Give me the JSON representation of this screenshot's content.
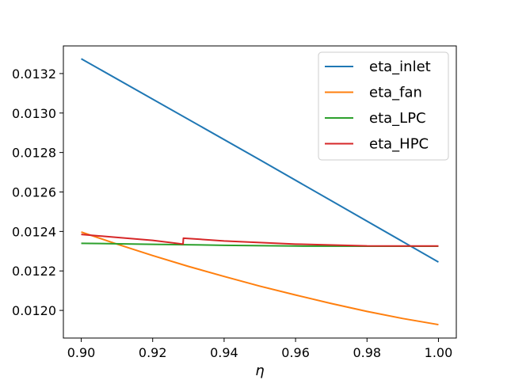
{
  "chart_data": {
    "type": "line",
    "title": "",
    "xlabel": "η",
    "ylabel": "",
    "xlim": [
      0.895,
      1.005
    ],
    "ylim": [
      0.01186,
      0.01334
    ],
    "xticks": [
      0.9,
      0.92,
      0.94,
      0.96,
      0.98,
      1.0
    ],
    "xtick_labels": [
      "0.90",
      "0.92",
      "0.94",
      "0.96",
      "0.98",
      "1.00"
    ],
    "yticks": [
      0.012,
      0.0122,
      0.0124,
      0.0126,
      0.0128,
      0.013,
      0.0132
    ],
    "ytick_labels": [
      "0.0120",
      "0.0122",
      "0.0124",
      "0.0126",
      "0.0128",
      "0.0130",
      "0.0132"
    ],
    "grid": false,
    "legend_position": "top-right",
    "series": [
      {
        "name": "eta_inlet",
        "color": "#1f77b4",
        "x": [
          0.9,
          0.95,
          1.0
        ],
        "y": [
          0.013275,
          0.012763,
          0.012245
        ]
      },
      {
        "name": "eta_fan",
        "color": "#ff7f0e",
        "x": [
          0.9,
          0.91,
          0.92,
          0.93,
          0.94,
          0.95,
          0.96,
          0.97,
          0.98,
          0.99,
          1.0
        ],
        "y": [
          0.012397,
          0.012336,
          0.012278,
          0.012223,
          0.012172,
          0.012123,
          0.012078,
          0.012035,
          0.011995,
          0.011959,
          0.011928
        ]
      },
      {
        "name": "eta_LPC",
        "color": "#2ca02c",
        "x": [
          0.9,
          0.92,
          0.94,
          0.96,
          0.98,
          1.0
        ],
        "y": [
          0.01234,
          0.012335,
          0.01233,
          0.012326,
          0.012325,
          0.012325
        ]
      },
      {
        "name": "eta_HPC",
        "color": "#d62728",
        "x": [
          0.9,
          0.91,
          0.92,
          0.9285,
          0.9286,
          0.94,
          0.96,
          0.98,
          1.0
        ],
        "y": [
          0.012385,
          0.01237,
          0.012355,
          0.012336,
          0.012366,
          0.012352,
          0.012336,
          0.012327,
          0.012326
        ]
      }
    ]
  }
}
